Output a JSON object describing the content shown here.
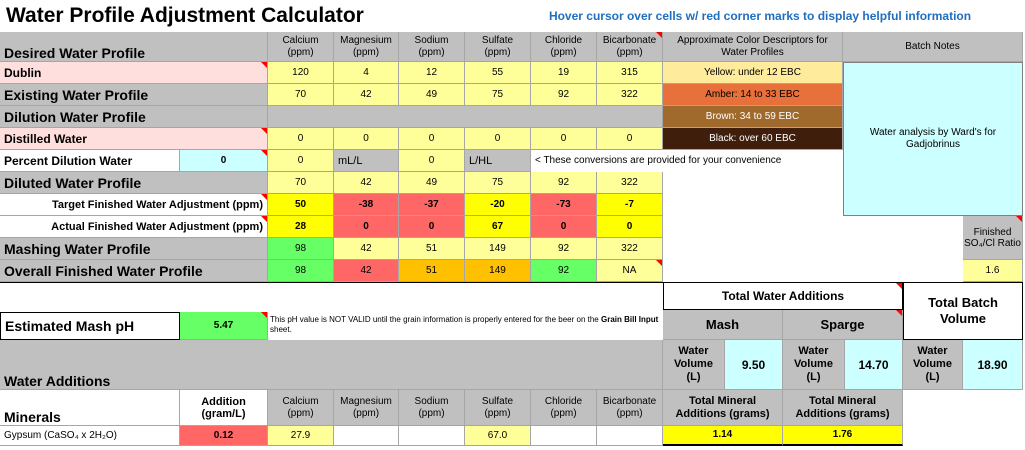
{
  "title": "Water Profile Adjustment Calculator",
  "hint": "Hover cursor over cells w/ red corner marks to display helpful information",
  "columns": [
    "Calcium",
    "Magnesium",
    "Sodium",
    "Sulfate",
    "Chloride",
    "Bicarbonate"
  ],
  "units": [
    "(ppm)",
    "(ppm)",
    "(ppm)",
    "(ppm)",
    "(ppm)",
    "(ppm)"
  ],
  "color_descriptors_header": "Approximate Color Descriptors for Water Profiles",
  "color_descriptors": [
    {
      "label": "Yellow: under 12 EBC",
      "color": "#ffeb9c"
    },
    {
      "label": "Amber: 14 to 33 EBC",
      "color": "#e8703a"
    },
    {
      "label": "Brown: 34 to 59 EBC",
      "color": "#a06a2c"
    },
    {
      "label": "Black: over 60 EBC",
      "color": "#3f1f0c"
    }
  ],
  "batch_notes_header": "Batch Notes",
  "batch_notes": "Water analysis by Ward's for Gadjobrinus",
  "desired": {
    "label": "Desired Water Profile"
  },
  "dublin": {
    "label": "Dublin",
    "values": [
      "120",
      "4",
      "12",
      "55",
      "19",
      "315"
    ]
  },
  "existing": {
    "label": "Existing Water Profile",
    "values": [
      "70",
      "42",
      "49",
      "75",
      "92",
      "322"
    ]
  },
  "dilution_profile": {
    "label": "Dilution Water Profile"
  },
  "distilled": {
    "label": "Distilled Water",
    "values": [
      "0",
      "0",
      "0",
      "0",
      "0",
      "0"
    ]
  },
  "percent_dilution": {
    "label": "Percent Dilution Water",
    "value": "0",
    "ml_value": "0",
    "ml_unit": "mL/L",
    "l_value": "0",
    "l_unit": "L/HL",
    "note": "< These conversions are provided for your convenience"
  },
  "diluted": {
    "label": "Diluted Water Profile",
    "values": [
      "70",
      "42",
      "49",
      "75",
      "92",
      "322"
    ]
  },
  "target_adj": {
    "label": "Target Finished Water Adjustment (ppm)",
    "values": [
      "50",
      "-38",
      "-37",
      "-20",
      "-73",
      "-7"
    ]
  },
  "actual_adj": {
    "label": "Actual Finished Water Adjustment (ppm)",
    "values": [
      "28",
      "0",
      "0",
      "67",
      "0",
      "0"
    ]
  },
  "mashing": {
    "label": "Mashing Water Profile",
    "values": [
      "98",
      "42",
      "51",
      "149",
      "92",
      "322"
    ]
  },
  "overall": {
    "label": "Overall Finished Water Profile",
    "values": [
      "98",
      "42",
      "51",
      "149",
      "92",
      "NA"
    ]
  },
  "ratio": {
    "header": "Finished SO₄/Cl Ratio",
    "value": "1.6"
  },
  "mash_ph": {
    "label": "Estimated Mash pH",
    "value": "5.47",
    "note_prefix": "This pH value is NOT VALID until the grain information is properly entered for the beer on the ",
    "note_link": "Grain Bill Input",
    "note_suffix": " sheet."
  },
  "water_additions": {
    "label": "Water Additions",
    "total_header": "Total Water Additions",
    "mash_label": "Mash",
    "sparge_label": "Sparge",
    "volume_label": "Water Volume (L)",
    "mash_volume": "9.50",
    "sparge_volume": "14.70",
    "batch_header": "Total Batch Volume",
    "batch_volume": "18.90"
  },
  "minerals": {
    "label": "Minerals",
    "addition_header": "Addition",
    "addition_unit": "(gram/L)",
    "total_mineral_header": "Total Mineral Additions (grams)",
    "rows": [
      {
        "name": "Gypsum (CaSO₄ x 2H₂O)",
        "addition": "0.12",
        "values": [
          "27.9",
          "",
          "",
          "67.0",
          "",
          ""
        ],
        "mash_total": "1.14",
        "sparge_total": "1.76"
      }
    ]
  }
}
